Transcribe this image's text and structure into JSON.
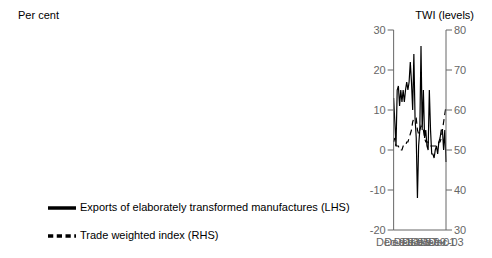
{
  "chart_data": {
    "type": "line",
    "ylabel": "Per cent",
    "y2label": "TWI (levels)",
    "categories": [
      "Dec-91",
      null,
      null,
      null,
      null,
      null,
      null,
      "Dec-93",
      null,
      null,
      null,
      null,
      null,
      null,
      null,
      "Dec-95",
      null,
      null,
      null,
      null,
      null,
      null,
      "Dec-97",
      null,
      null,
      null,
      null,
      null,
      null,
      "Dec-99",
      null,
      null,
      null,
      null,
      null,
      null,
      null,
      "Dec-01",
      null,
      null,
      null,
      null,
      null,
      null,
      "Dec-03"
    ],
    "series": [
      {
        "name": "Exports of elaborately transformed manufactures (LHS)",
        "color": "#000000",
        "line_style": "solid",
        "values": [
          13,
          7,
          1,
          15,
          16,
          11,
          15,
          12,
          15,
          12,
          15,
          17,
          15,
          17,
          22,
          17,
          10,
          24,
          8,
          3,
          -12,
          1,
          5,
          26,
          5,
          15,
          3,
          5,
          1,
          0,
          15,
          5,
          -1,
          -1,
          -2,
          0,
          1,
          -1,
          2,
          3,
          5,
          5,
          0,
          5,
          -3
        ]
      },
      {
        "name": "Trade weighted index (RHS)",
        "color": "#000000",
        "line_style": "dashed",
        "axis": "y2",
        "values": [
          52,
          53,
          51,
          51,
          51,
          50,
          50,
          50,
          51,
          51,
          51,
          52,
          52,
          53,
          54,
          55,
          57,
          58,
          58,
          58,
          55,
          54,
          55,
          56,
          55,
          55,
          53,
          52,
          52,
          52,
          51,
          51,
          51,
          51,
          51,
          51,
          51,
          51,
          52,
          52,
          53,
          55,
          57,
          59,
          61
        ]
      }
    ],
    "ylim": [
      -20,
      30
    ],
    "yticks": [
      -20,
      -10,
      0,
      10,
      20,
      30
    ],
    "y2lim": [
      30,
      80
    ],
    "y2ticks": [
      30,
      40,
      50,
      60,
      70,
      80
    ],
    "grid": false
  }
}
